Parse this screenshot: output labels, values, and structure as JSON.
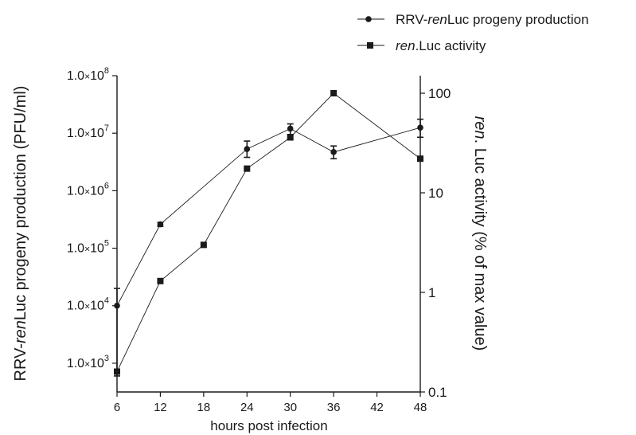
{
  "chart_data": {
    "type": "line",
    "xlabel": "hours post infection",
    "ylabel_left": "RRV-renLuc progeny production (PFU/ml)",
    "ylabel_right": "ren. Luc activity (% of max value)",
    "xlim": [
      6,
      48
    ],
    "ylim_left": [
      300,
      100000000
    ],
    "ylim_right": [
      0.1,
      150
    ],
    "y_scale_left": "log",
    "y_scale_right": "log",
    "x_ticks": [
      6,
      12,
      18,
      24,
      30,
      36,
      42,
      48
    ],
    "x_tick_labels": [
      "6",
      "12",
      "18",
      "24",
      "30",
      "36",
      "42",
      "48"
    ],
    "y_left_ticks": [
      {
        "value": 1000,
        "mantissa": "1.0",
        "sign": "×",
        "base": "10",
        "exp": "3"
      },
      {
        "value": 10000,
        "mantissa": "1.0",
        "sign": "×",
        "base": "10",
        "exp": "4"
      },
      {
        "value": 100000,
        "mantissa": "1.0",
        "sign": "×",
        "base": "10",
        "exp": "5"
      },
      {
        "value": 1000000,
        "mantissa": "1.0",
        "sign": "×",
        "base": "10",
        "exp": "6"
      },
      {
        "value": 10000000,
        "mantissa": "1.0",
        "sign": "×",
        "base": "10",
        "exp": "7"
      },
      {
        "value": 100000000,
        "mantissa": "1.0",
        "sign": "×",
        "base": "10",
        "exp": "8"
      }
    ],
    "y_right_ticks": [
      0.1,
      1,
      10,
      100
    ],
    "y_right_tick_labels": [
      "0.1",
      "1",
      "10",
      "100"
    ],
    "legend_position": "top-right",
    "legend": [
      {
        "pre": "RRV-",
        "ital": "ren",
        "post": "Luc progeny production",
        "marker": "circle"
      },
      {
        "pre": "",
        "ital": "ren",
        "post": ".Luc activity",
        "marker": "square"
      }
    ],
    "series": [
      {
        "name": "RRV-renLuc progeny production",
        "axis": "left",
        "marker": "circle",
        "x": [
          6,
          12,
          24,
          30,
          36,
          48
        ],
        "y": [
          10000,
          260000,
          5300000,
          12000000,
          4700000,
          12500000
        ],
        "err_low": [
          600,
          240000,
          3800000,
          9500000,
          3600000,
          8500000
        ],
        "err_high": [
          20000,
          280000,
          7300000,
          14500000,
          6000000,
          17500000
        ]
      },
      {
        "name": "ren.Luc activity",
        "axis": "right",
        "marker": "square",
        "x": [
          6,
          12,
          18,
          24,
          30,
          36,
          48
        ],
        "y": [
          0.16,
          1.3,
          3,
          17.5,
          36,
          100,
          22
        ]
      }
    ]
  }
}
